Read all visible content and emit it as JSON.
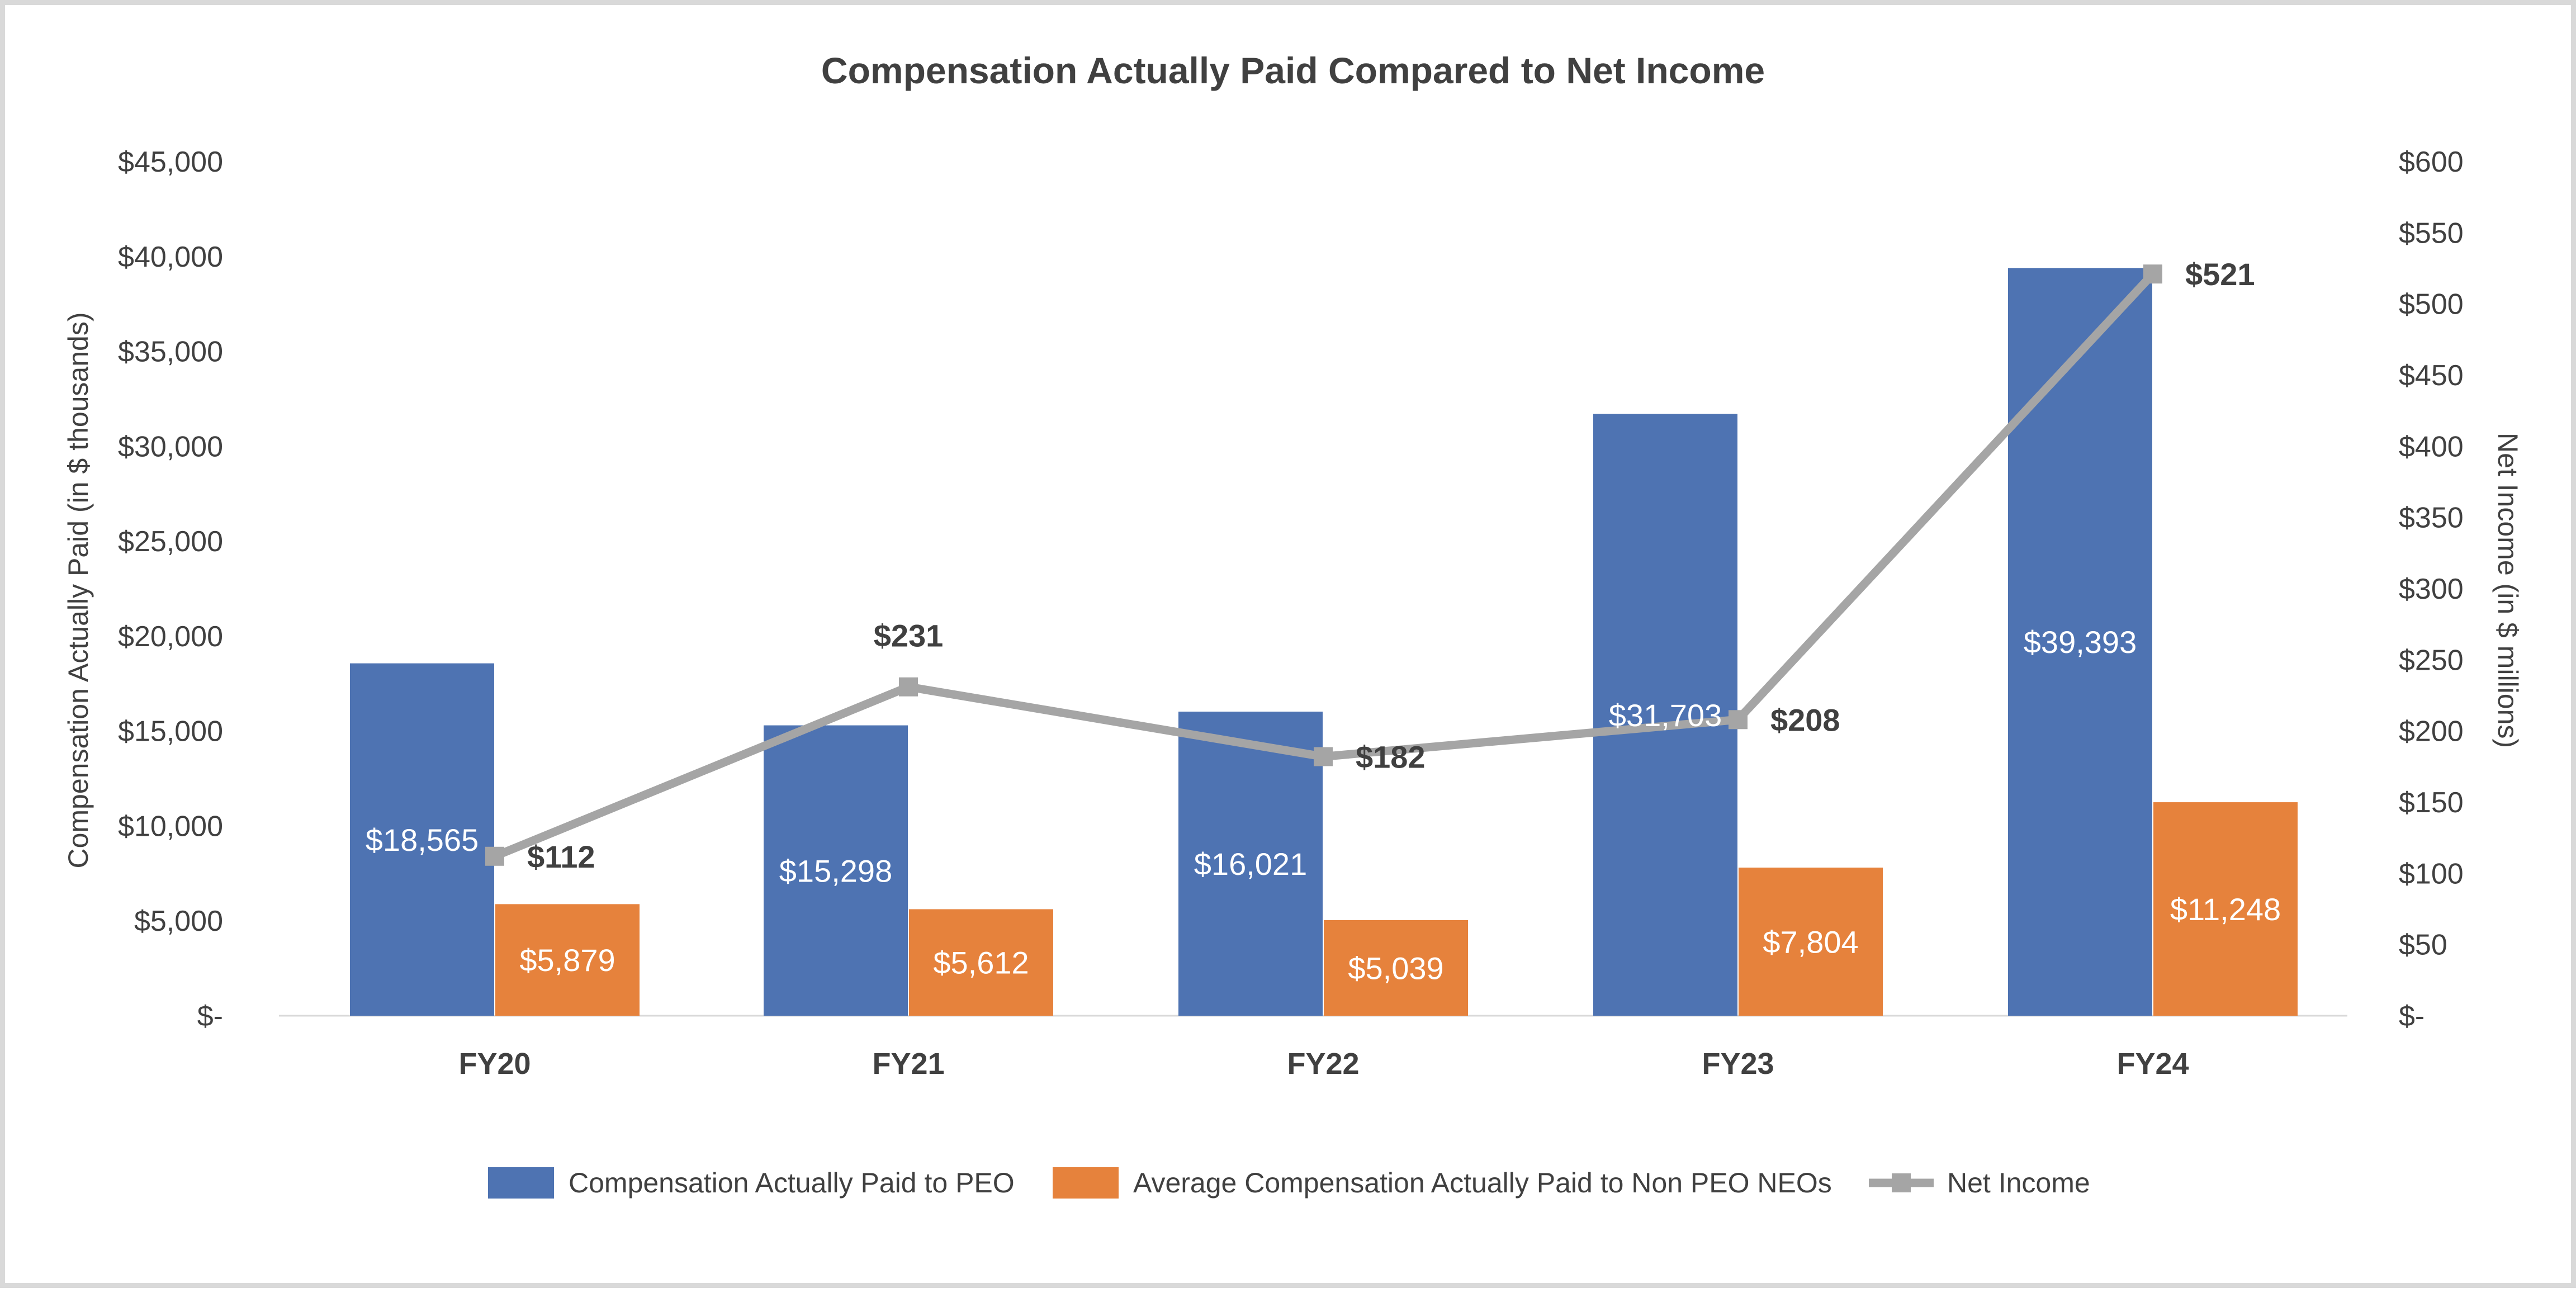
{
  "chart_data": {
    "type": "bar",
    "title": "Compensation Actually Paid Compared to Net Income",
    "categories": [
      "FY20",
      "FY21",
      "FY22",
      "FY23",
      "FY24"
    ],
    "ylabel": "Compensation Actually Paid (in $ thousands)",
    "ylabel_right": "Net Income (in $ millions)",
    "ylim": [
      0,
      45000
    ],
    "ylim_right": [
      0,
      600
    ],
    "y_ticks": [
      0,
      5000,
      10000,
      15000,
      20000,
      25000,
      30000,
      35000,
      40000,
      45000
    ],
    "y_tick_labels": [
      "$-",
      "$5,000",
      "$10,000",
      "$15,000",
      "$20,000",
      "$25,000",
      "$30,000",
      "$35,000",
      "$40,000",
      "$45,000"
    ],
    "y_ticks_right": [
      0,
      50,
      100,
      150,
      200,
      250,
      300,
      350,
      400,
      450,
      500,
      550,
      600
    ],
    "y_tick_labels_right": [
      "$-",
      "$50",
      "$100",
      "$150",
      "$200",
      "$250",
      "$300",
      "$350",
      "$400",
      "$450",
      "$500",
      "$550",
      "$600"
    ],
    "grid": false,
    "legend_position": "bottom",
    "series": [
      {
        "name": "Compensation Actually Paid to PEO",
        "type": "bar",
        "axis": "left",
        "color": "#4e73b2",
        "values": [
          18565,
          15298,
          16021,
          31703,
          39393
        ],
        "labels": [
          "$18,565",
          "$15,298",
          "$16,021",
          "$31,703",
          "$39,393"
        ]
      },
      {
        "name": "Average Compensation Actually Paid to Non PEO NEOs",
        "type": "bar",
        "axis": "left",
        "color": "#e6823c",
        "values": [
          5879,
          5612,
          5039,
          7804,
          11248
        ],
        "labels": [
          "$5,879",
          "$5,612",
          "$5,039",
          "$7,804",
          "$11,248"
        ]
      },
      {
        "name": "Net Income",
        "type": "line",
        "axis": "right",
        "color": "#a5a5a5",
        "values": [
          112,
          231,
          182,
          208,
          521
        ],
        "labels": [
          "$112",
          "$231",
          "$182",
          "$208",
          "$521"
        ]
      }
    ]
  }
}
